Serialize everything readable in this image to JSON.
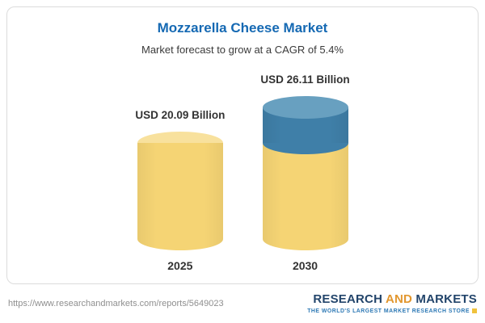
{
  "card": {
    "title": "Mozzarella Cheese Market",
    "subtitle": "Market forecast to grow at a CAGR of 5.4%"
  },
  "chart_data": {
    "type": "bar",
    "variant": "3d-cylinder",
    "categories": [
      "2025",
      "2030"
    ],
    "values": [
      20.09,
      26.11
    ],
    "value_labels": [
      "USD 20.09 Billion",
      "USD 26.11 Billion"
    ],
    "unit": "USD Billion",
    "title": "Mozzarella Cheese Market",
    "subtitle": "Market forecast to grow at a CAGR of 5.4%",
    "cagr_percent": 5.4,
    "xlabel": "",
    "ylabel": "",
    "legend": "none",
    "growth_segment_applies_to": "2030",
    "growth_segment_value": 6.02
  },
  "colors": {
    "title_blue": "#1569b3",
    "gold": "#f5d474",
    "gold_top": "#f8e19d",
    "blue": "#3f7fa8",
    "blue_top": "#68a0c0",
    "card_border": "#dcdcdc",
    "logo_navy": "#23456b",
    "logo_orange": "#e2972f",
    "tagline_blue": "#2e79b5",
    "logo_yellow": "#f0c23c"
  },
  "footer": {
    "url": "https://www.researchandmarkets.com/reports/5649023",
    "logo": {
      "word1": "RESEARCH",
      "word2": "AND",
      "word3": "MARKETS",
      "tagline": "THE WORLD'S LARGEST MARKET RESEARCH STORE"
    }
  }
}
